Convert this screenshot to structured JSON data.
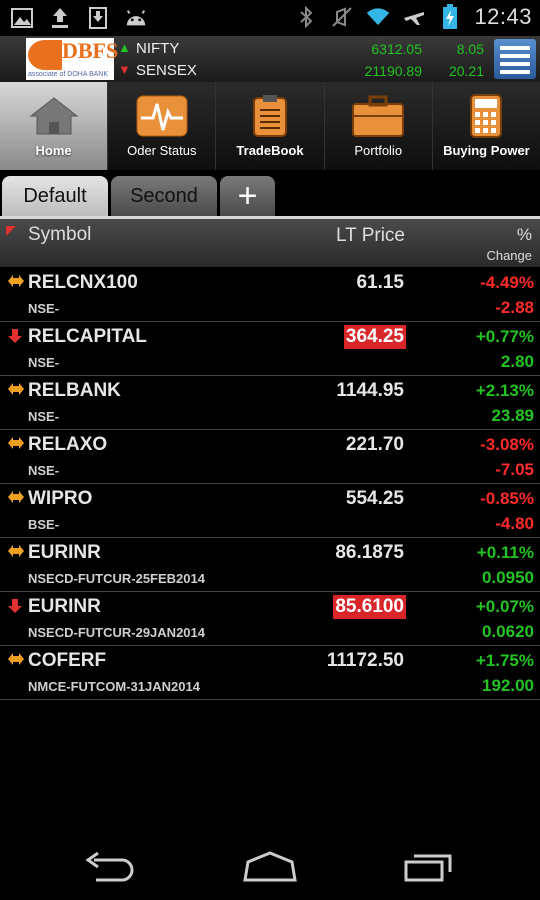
{
  "status_bar": {
    "time": "12:43",
    "left_icons": [
      "gallery-icon",
      "upload-icon",
      "download-icon",
      "android-icon"
    ],
    "right_icons": [
      "bluetooth-icon",
      "mute-icon",
      "wifi-icon",
      "airplane-icon",
      "battery-charging-icon"
    ]
  },
  "header": {
    "logo_text": "DBFS",
    "logo_sub": "associate of DOHA BANK",
    "indices": [
      {
        "name": "NIFTY",
        "direction": "up",
        "value": "6312.05",
        "change": "8.05"
      },
      {
        "name": "SENSEX",
        "direction": "down",
        "value": "21190.89",
        "change": "20.21"
      }
    ]
  },
  "toolbar": [
    {
      "label": "Home",
      "icon": "home-icon",
      "active": true
    },
    {
      "label": "Oder Status",
      "icon": "pulse-icon",
      "active": false
    },
    {
      "label": "TradeBook",
      "icon": "clipboard-icon",
      "active": false
    },
    {
      "label": "Portfolio",
      "icon": "briefcase-icon",
      "active": false
    },
    {
      "label": "Buying Power",
      "icon": "calculator-icon",
      "active": false
    }
  ],
  "tabs": [
    {
      "label": "Default",
      "active": true
    },
    {
      "label": "Second",
      "active": false
    },
    {
      "label": "+",
      "active": false
    }
  ],
  "columns": {
    "symbol": "Symbol",
    "lt_price": "LT Price",
    "percent": "%",
    "change": "Change"
  },
  "rows": [
    {
      "symbol": "RELCNX100",
      "exchange": "NSE-",
      "lt_price": "61.15",
      "pct": "-4.49%",
      "change": "-2.88",
      "trend": "both",
      "highlight": false,
      "sign": "neg"
    },
    {
      "symbol": "RELCAPITAL",
      "exchange": "NSE-",
      "lt_price": "364.25",
      "pct": "+0.77%",
      "change": "2.80",
      "trend": "down",
      "highlight": true,
      "sign": "pos"
    },
    {
      "symbol": "RELBANK",
      "exchange": "NSE-",
      "lt_price": "1144.95",
      "pct": "+2.13%",
      "change": "23.89",
      "trend": "both",
      "highlight": false,
      "sign": "pos"
    },
    {
      "symbol": "RELAXO",
      "exchange": "NSE-",
      "lt_price": "221.70",
      "pct": "-3.08%",
      "change": "-7.05",
      "trend": "both",
      "highlight": false,
      "sign": "neg"
    },
    {
      "symbol": "WIPRO",
      "exchange": "BSE-",
      "lt_price": "554.25",
      "pct": "-0.85%",
      "change": "-4.80",
      "trend": "both",
      "highlight": false,
      "sign": "neg"
    },
    {
      "symbol": "EURINR",
      "exchange": "NSECD-FUTCUR-25FEB2014",
      "lt_price": "86.1875",
      "pct": "+0.11%",
      "change": "0.0950",
      "trend": "both",
      "highlight": false,
      "sign": "pos"
    },
    {
      "symbol": "EURINR",
      "exchange": "NSECD-FUTCUR-29JAN2014",
      "lt_price": "85.6100",
      "pct": "+0.07%",
      "change": "0.0620",
      "trend": "down",
      "highlight": true,
      "sign": "pos"
    },
    {
      "symbol": "COFERF",
      "exchange": "NMCE-FUTCOM-31JAN2014",
      "lt_price": "11172.50",
      "pct": "+1.75%",
      "change": "192.00",
      "trend": "both",
      "highlight": false,
      "sign": "pos"
    }
  ],
  "colors": {
    "positive": "#22c322",
    "negative": "#ff2a2a",
    "highlight": "#d8252a",
    "brand": "#e8701f"
  },
  "nav_bar": [
    "back-icon",
    "home-nav-icon",
    "recent-apps-icon"
  ]
}
